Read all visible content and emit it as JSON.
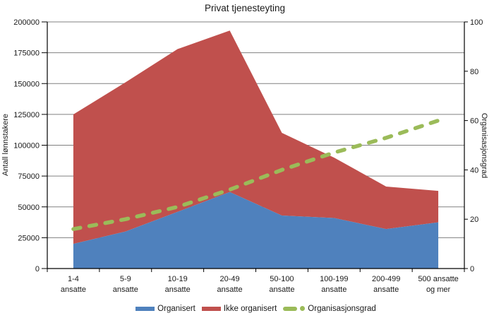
{
  "title": "Privat tjenesteyting",
  "axes": {
    "left_title": "Antall lønnstakere",
    "right_title": "Organisasjonsgrad"
  },
  "legend": {
    "items": [
      {
        "label": "Organisert",
        "swatch": "blue-area",
        "color": "#4F81BD"
      },
      {
        "label": "Ikke organisert",
        "swatch": "red-area",
        "color": "#C0504D"
      },
      {
        "label": "Organisasjonsgrad",
        "swatch": "green-dash-dot",
        "color": "#9BBB59"
      }
    ]
  },
  "colors": {
    "organisert": "#4F81BD",
    "ikke_organisert": "#C0504D",
    "organisasjonsgrad": "#9BBB59",
    "gridline": "#808080",
    "axis_line": "#000000",
    "text": "#1a1a1a",
    "background": "#ffffff"
  },
  "chart_data": {
    "type": "area",
    "subtype": "stacked-area-with-dashed-line",
    "title": "Privat tjenesteyting",
    "xlabel": "",
    "ylabel": "Antall lønnstakere",
    "y2label": "Organisasjonsgrad",
    "grid": true,
    "legend_position": "bottom",
    "categories": [
      "1-4 ansatte",
      "5-9 ansatte",
      "10-19 ansatte",
      "20-49 ansatte",
      "50-100 ansatte",
      "100-199 ansatte",
      "200-499 ansatte",
      "500 ansatte og mer"
    ],
    "category_label_lines": [
      [
        "1-4",
        "ansatte"
      ],
      [
        "5-9",
        "ansatte"
      ],
      [
        "10-19",
        "ansatte"
      ],
      [
        "20-49",
        "ansatte"
      ],
      [
        "50-100",
        "ansatte"
      ],
      [
        "100-199",
        "ansatte"
      ],
      [
        "200-499",
        "ansatte"
      ],
      [
        "500 ansatte",
        "og mer"
      ]
    ],
    "series": [
      {
        "name": "Organisert",
        "type": "area",
        "axis": "left",
        "color": "#4F81BD",
        "values": [
          20000,
          30000,
          46000,
          62000,
          43000,
          41000,
          32000,
          37500
        ]
      },
      {
        "name": "Ikke organisert",
        "type": "area",
        "axis": "left",
        "stacked": true,
        "color": "#C0504D",
        "values": [
          105000,
          121000,
          132000,
          131000,
          67000,
          49000,
          34500,
          25500
        ]
      },
      {
        "name": "Organisasjonsgrad",
        "type": "dashed-line",
        "axis": "right",
        "color": "#9BBB59",
        "values": [
          16,
          20,
          25,
          32,
          40,
          47,
          53,
          60
        ]
      }
    ],
    "stacked_totals": [
      125000,
      151000,
      178000,
      193000,
      110000,
      90000,
      66500,
      63000
    ],
    "left_axis": {
      "min": 0,
      "max": 200000,
      "tick_step": 25000,
      "tick_labels": [
        "0",
        "25000",
        "50000",
        "75000",
        "100000",
        "125000",
        "150000",
        "175000",
        "200000"
      ]
    },
    "right_axis": {
      "min": 0,
      "max": 100,
      "tick_step": 20,
      "tick_labels": [
        "0",
        "20",
        "40",
        "60",
        "80",
        "100"
      ]
    }
  }
}
